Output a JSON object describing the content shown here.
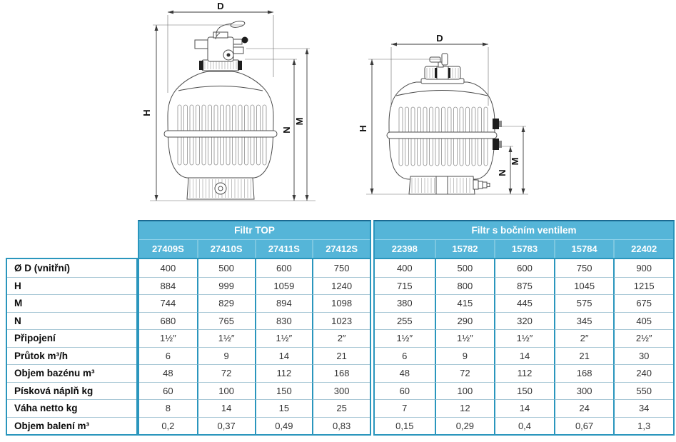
{
  "colors": {
    "header_bg": "#55b5d8",
    "header_top": "#1b6a92",
    "table_border": "#2a96bd",
    "row_line": "#a9c8d6",
    "header_divider": "#8fd2ea",
    "model_divider": "#7cc7e0",
    "text_dark": "#333333",
    "line": "#4d4d4d"
  },
  "diagrams": {
    "left": {
      "d": "D",
      "h": "H",
      "m": "M",
      "n": "N"
    },
    "right": {
      "d": "D",
      "h": "H",
      "m": "M",
      "n": "N"
    }
  },
  "table": {
    "groups": [
      {
        "label": "Filtr TOP",
        "models": [
          "27409S",
          "27410S",
          "27411S",
          "27412S"
        ]
      },
      {
        "label": "Filtr s bočním ventilem",
        "models": [
          "22398",
          "15782",
          "15783",
          "15784",
          "22402"
        ]
      }
    ],
    "rows": [
      {
        "label": "Ø D (vnitřní)",
        "values": [
          "400",
          "500",
          "600",
          "750",
          "400",
          "500",
          "600",
          "750",
          "900"
        ]
      },
      {
        "label": "H",
        "values": [
          "884",
          "999",
          "1059",
          "1240",
          "715",
          "800",
          "875",
          "1045",
          "1215"
        ]
      },
      {
        "label": "M",
        "values": [
          "744",
          "829",
          "894",
          "1098",
          "380",
          "415",
          "445",
          "575",
          "675"
        ]
      },
      {
        "label": "N",
        "values": [
          "680",
          "765",
          "830",
          "1023",
          "255",
          "290",
          "320",
          "345",
          "405"
        ]
      },
      {
        "label": "Připojení",
        "values": [
          "1½″",
          "1½″",
          "1½″",
          "2″",
          "1½″",
          "1½″",
          "1½″",
          "2″",
          "2½″"
        ]
      },
      {
        "label": "Průtok m³/h",
        "values": [
          "6",
          "9",
          "14",
          "21",
          "6",
          "9",
          "14",
          "21",
          "30"
        ]
      },
      {
        "label": "Objem bazénu m³",
        "values": [
          "48",
          "72",
          "112",
          "168",
          "48",
          "72",
          "112",
          "168",
          "240"
        ]
      },
      {
        "label": "Písková náplň kg",
        "values": [
          "60",
          "100",
          "150",
          "300",
          "60",
          "100",
          "150",
          "300",
          "550"
        ]
      },
      {
        "label": "Váha netto kg",
        "values": [
          "8",
          "14",
          "15",
          "25",
          "7",
          "12",
          "14",
          "24",
          "34"
        ]
      },
      {
        "label": "Objem balení m³",
        "values": [
          "0,2",
          "0,37",
          "0,49",
          "0,83",
          "0,15",
          "0,29",
          "0,4",
          "0,67",
          "1,3"
        ]
      }
    ]
  }
}
